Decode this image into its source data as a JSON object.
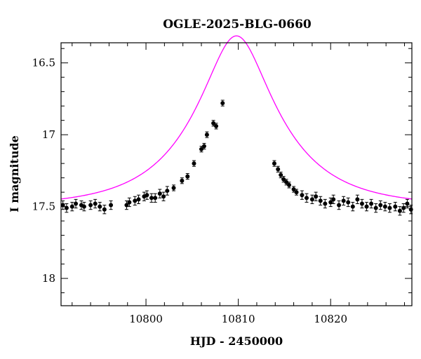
{
  "chart_data": {
    "type": "scatter",
    "title": "OGLE-2025-BLG-0660",
    "xlabel": "HJD - 2450000",
    "ylabel": "I magnitude",
    "xlim": [
      10790.8,
      10828.8
    ],
    "ylim": [
      18.19,
      16.36
    ],
    "y_inverted": true,
    "grid": false,
    "x_ticks": [
      10800,
      10810,
      10820
    ],
    "y_ticks": [
      16.5,
      17,
      17.5,
      18
    ],
    "y_tick_labels": [
      "16.5",
      "17",
      "17.5",
      "18"
    ],
    "x_tick_labels": [
      "10800",
      "10810",
      "10820"
    ],
    "colors": {
      "data": "#000000",
      "model": "#ff00ff",
      "frame": "#000000"
    },
    "series": [
      {
        "kind": "points_with_errorbars",
        "x": [
          10791.0,
          10791.4,
          10792.0,
          10792.4,
          10793.0,
          10793.3,
          10794.0,
          10794.5,
          10795.0,
          10795.5,
          10796.2,
          10797.9,
          10798.2,
          10798.8,
          10799.2,
          10799.8,
          10800.1,
          10800.6,
          10801.0,
          10801.5,
          10801.9,
          10802.3,
          10803.0,
          10803.9,
          10804.5,
          10805.2,
          10806.0,
          10806.3,
          10806.6,
          10807.3,
          10807.6,
          10808.3,
          10813.9,
          10814.3,
          10814.6,
          10814.9,
          10815.2,
          10815.5,
          10816.0,
          10816.3,
          10816.9,
          10817.4,
          10818.0,
          10818.4,
          10818.9,
          10819.4,
          10820.0,
          10820.3,
          10820.9,
          10821.4,
          10821.9,
          10822.4,
          10822.9,
          10823.4,
          10823.9,
          10824.4,
          10824.9,
          10825.4,
          10825.9,
          10826.4,
          10827.0,
          10827.5,
          10827.9,
          10828.3,
          10828.7
        ],
        "y": [
          17.49,
          17.51,
          17.5,
          17.48,
          17.49,
          17.5,
          17.49,
          17.48,
          17.5,
          17.52,
          17.49,
          17.49,
          17.47,
          17.46,
          17.45,
          17.43,
          17.42,
          17.44,
          17.44,
          17.41,
          17.43,
          17.39,
          17.37,
          17.32,
          17.29,
          17.2,
          17.1,
          17.08,
          17.0,
          16.92,
          16.94,
          16.78,
          17.2,
          17.24,
          17.28,
          17.31,
          17.33,
          17.35,
          17.38,
          17.4,
          17.42,
          17.44,
          17.45,
          17.43,
          17.46,
          17.48,
          17.47,
          17.45,
          17.49,
          17.46,
          17.47,
          17.5,
          17.45,
          17.48,
          17.5,
          17.48,
          17.51,
          17.49,
          17.5,
          17.51,
          17.5,
          17.53,
          17.51,
          17.48,
          17.52
        ],
        "yerr": [
          0.03,
          0.03,
          0.03,
          0.03,
          0.03,
          0.03,
          0.03,
          0.03,
          0.03,
          0.03,
          0.03,
          0.03,
          0.03,
          0.03,
          0.03,
          0.03,
          0.03,
          0.03,
          0.03,
          0.03,
          0.03,
          0.03,
          0.02,
          0.02,
          0.02,
          0.02,
          0.02,
          0.02,
          0.02,
          0.02,
          0.02,
          0.02,
          0.02,
          0.02,
          0.02,
          0.02,
          0.02,
          0.02,
          0.02,
          0.02,
          0.03,
          0.03,
          0.03,
          0.03,
          0.03,
          0.03,
          0.03,
          0.03,
          0.03,
          0.03,
          0.03,
          0.03,
          0.03,
          0.03,
          0.03,
          0.03,
          0.03,
          0.03,
          0.03,
          0.03,
          0.03,
          0.03,
          0.03,
          0.03,
          0.03
        ]
      },
      {
        "kind": "model_curve",
        "model": {
          "baseline": 17.5,
          "t0": 10809.8,
          "tE": 9.0,
          "u0": 0.35
        }
      }
    ]
  }
}
